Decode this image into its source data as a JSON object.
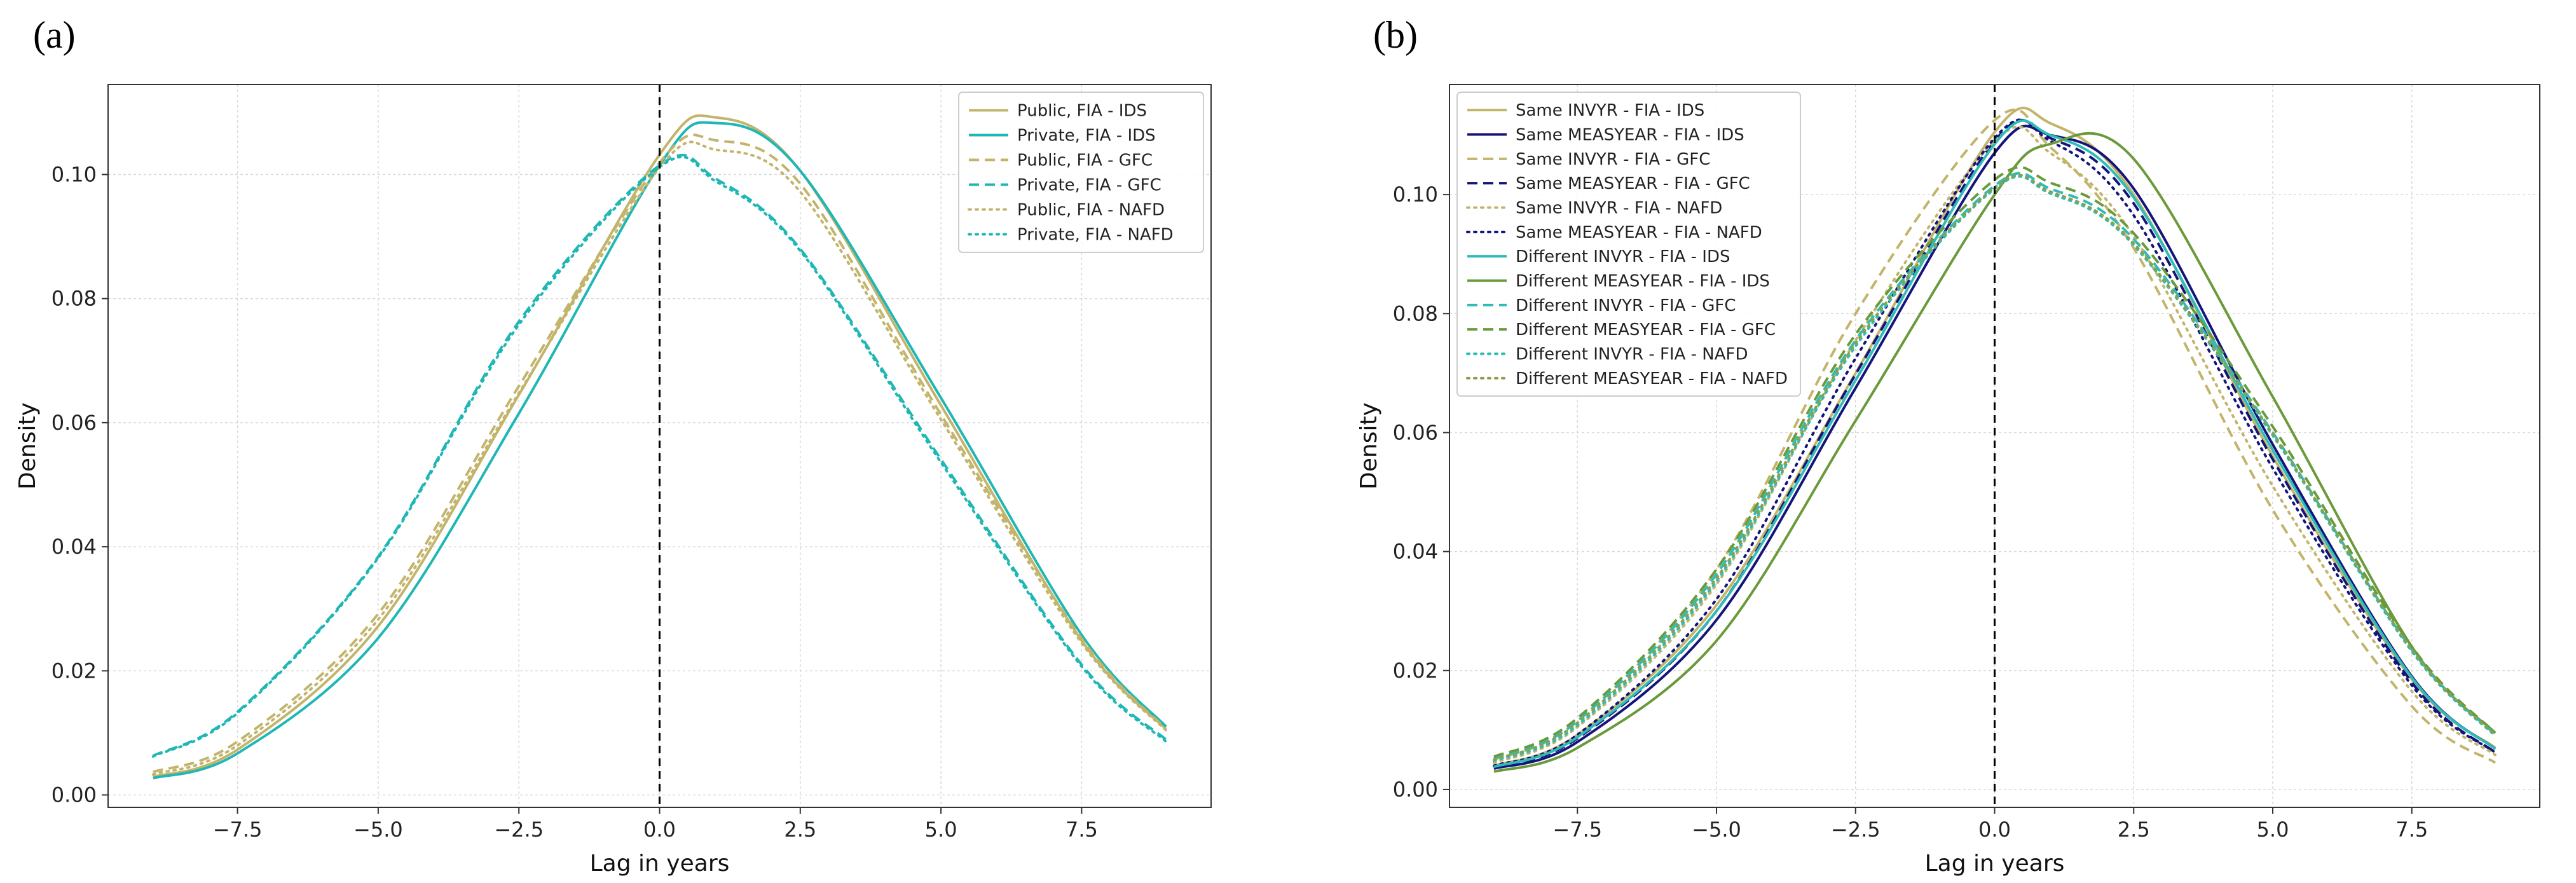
{
  "chart_data": [
    {
      "type": "line",
      "panel_label": "(a)",
      "xlabel": "Lag in years",
      "ylabel": "Density",
      "xlim": [
        -9.8,
        9.8
      ],
      "ylim": [
        -0.002,
        0.1145
      ],
      "xticks": [
        -7.5,
        -5.0,
        -2.5,
        0.0,
        2.5,
        5.0,
        7.5
      ],
      "xtick_labels": [
        "−7.5",
        "−5.0",
        "−2.5",
        "0.0",
        "2.5",
        "5.0",
        "7.5"
      ],
      "yticks": [
        0.0,
        0.02,
        0.04,
        0.06,
        0.08,
        0.1
      ],
      "ytick_labels": [
        "0.00",
        "0.02",
        "0.04",
        "0.06",
        "0.08",
        "0.10"
      ],
      "vline_x": 0,
      "grid": true,
      "legend_position": "top-right",
      "x": [
        -9,
        -7.5,
        -5,
        -2.5,
        0,
        1,
        2.5,
        5,
        7.5,
        9
      ],
      "series": [
        {
          "name": "Public, FIA - IDS",
          "color": "#c3b46b",
          "dash": "solid",
          "values": [
            0.0029,
            0.0073,
            0.0272,
            0.0645,
            0.1032,
            0.1092,
            0.1006,
            0.0628,
            0.0249,
            0.0106
          ]
        },
        {
          "name": "Private, FIA - IDS",
          "color": "#1fb7b5",
          "dash": "solid",
          "values": [
            0.0027,
            0.0067,
            0.0253,
            0.0615,
            0.1015,
            0.1083,
            0.1006,
            0.064,
            0.0258,
            0.011
          ]
        },
        {
          "name": "Public, FIA - GFC",
          "color": "#c3b46b",
          "dash": "dashed",
          "values": [
            0.0037,
            0.0086,
            0.0292,
            0.0659,
            0.1019,
            0.1055,
            0.0985,
            0.0613,
            0.0252,
            0.0106
          ]
        },
        {
          "name": "Private, FIA - GFC",
          "color": "#1fb7b5",
          "dash": "dashed",
          "values": [
            0.0063,
            0.0134,
            0.0384,
            0.0763,
            0.1015,
            0.0993,
            0.088,
            0.0541,
            0.021,
            0.0089
          ]
        },
        {
          "name": "Public, FIA - NAFD",
          "color": "#c3b46b",
          "dash": "dotted",
          "values": [
            0.0033,
            0.008,
            0.0283,
            0.0648,
            0.1011,
            0.104,
            0.0972,
            0.0605,
            0.0245,
            0.0104
          ]
        },
        {
          "name": "Private, FIA - NAFD",
          "color": "#1fb7b5",
          "dash": "dotted",
          "values": [
            0.0062,
            0.0132,
            0.0382,
            0.0758,
            0.1012,
            0.0989,
            0.0877,
            0.0536,
            0.0207,
            0.0086
          ]
        }
      ]
    },
    {
      "type": "line",
      "panel_label": "(b)",
      "xlabel": "Lag in years",
      "ylabel": "Density",
      "xlim": [
        -9.8,
        9.8
      ],
      "ylim": [
        -0.003,
        0.1185
      ],
      "xticks": [
        -7.5,
        -5.0,
        -2.5,
        0.0,
        2.5,
        5.0,
        7.5
      ],
      "xtick_labels": [
        "−7.5",
        "−5.0",
        "−2.5",
        "0.0",
        "2.5",
        "5.0",
        "7.5"
      ],
      "yticks": [
        0.0,
        0.02,
        0.04,
        0.06,
        0.08,
        0.1
      ],
      "ytick_labels": [
        "0.00",
        "0.02",
        "0.04",
        "0.06",
        "0.08",
        "0.10"
      ],
      "vline_x": 0,
      "grid": true,
      "legend_position": "top-left",
      "x": [
        -9,
        -7.5,
        -5,
        -2.5,
        0,
        1,
        2.5,
        5,
        7.5,
        9
      ],
      "series": [
        {
          "name": "Same INVYR - FIA - IDS",
          "color": "#c3b46b",
          "dash": "solid",
          "values": [
            0.004,
            0.0092,
            0.031,
            0.07,
            0.1105,
            0.112,
            0.1,
            0.056,
            0.0185,
            0.007
          ]
        },
        {
          "name": "Same MEASYEAR - FIA - IDS",
          "color": "#14147a",
          "dash": "solid",
          "values": [
            0.0035,
            0.008,
            0.0285,
            0.0675,
            0.107,
            0.11,
            0.101,
            0.058,
            0.019,
            0.0068
          ]
        },
        {
          "name": "Same INVYR - FIA - GFC",
          "color": "#c3b46b",
          "dash": "dashed",
          "values": [
            0.005,
            0.0115,
            0.037,
            0.08,
            0.1125,
            0.108,
            0.091,
            0.047,
            0.014,
            0.0045
          ]
        },
        {
          "name": "Same MEASYEAR - FIA - GFC",
          "color": "#14147a",
          "dash": "dashed",
          "values": [
            0.0038,
            0.0086,
            0.03,
            0.0698,
            0.109,
            0.1095,
            0.0985,
            0.0555,
            0.018,
            0.0062
          ]
        },
        {
          "name": "Same INVYR - FIA - NAFD",
          "color": "#c3b46b",
          "dash": "dotted",
          "values": [
            0.0045,
            0.0105,
            0.0345,
            0.0755,
            0.109,
            0.107,
            0.093,
            0.051,
            0.0165,
            0.0058
          ]
        },
        {
          "name": "Same MEASYEAR - FIA - NAFD",
          "color": "#14147a",
          "dash": "dotted",
          "values": [
            0.004,
            0.0092,
            0.032,
            0.0725,
            0.1095,
            0.109,
            0.0965,
            0.054,
            0.0175,
            0.0062
          ]
        },
        {
          "name": "Different INVYR - FIA - IDS",
          "color": "#2fbcb8",
          "dash": "solid",
          "values": [
            0.0038,
            0.0088,
            0.03,
            0.0688,
            0.1085,
            0.11,
            0.0995,
            0.057,
            0.0188,
            0.0068
          ]
        },
        {
          "name": "Different MEASYEAR - FIA - IDS",
          "color": "#6a9a3a",
          "dash": "solid",
          "values": [
            0.003,
            0.007,
            0.025,
            0.062,
            0.1,
            0.1085,
            0.106,
            0.066,
            0.024,
            0.0095
          ]
        },
        {
          "name": "Different INVYR - FIA - GFC",
          "color": "#2fbcb8",
          "dash": "dashed",
          "values": [
            0.0052,
            0.0115,
            0.0362,
            0.0755,
            0.1015,
            0.101,
            0.0925,
            0.06,
            0.0235,
            0.0092
          ]
        },
        {
          "name": "Different MEASYEAR - FIA - GFC",
          "color": "#6a9a3a",
          "dash": "dashed",
          "values": [
            0.0055,
            0.012,
            0.037,
            0.0765,
            0.1025,
            0.102,
            0.0935,
            0.061,
            0.024,
            0.0095
          ]
        },
        {
          "name": "Different INVYR - FIA - NAFD",
          "color": "#2fbcb8",
          "dash": "dotted",
          "values": [
            0.0048,
            0.0108,
            0.035,
            0.0745,
            0.101,
            0.1002,
            0.0915,
            0.0595,
            0.0232,
            0.009
          ]
        },
        {
          "name": "Different MEASYEAR - FIA - NAFD",
          "color": "#8aa04a",
          "dash": "dotted",
          "values": [
            0.005,
            0.0112,
            0.0355,
            0.075,
            0.1012,
            0.1005,
            0.0918,
            0.0598,
            0.0235,
            0.0092
          ]
        }
      ]
    }
  ]
}
